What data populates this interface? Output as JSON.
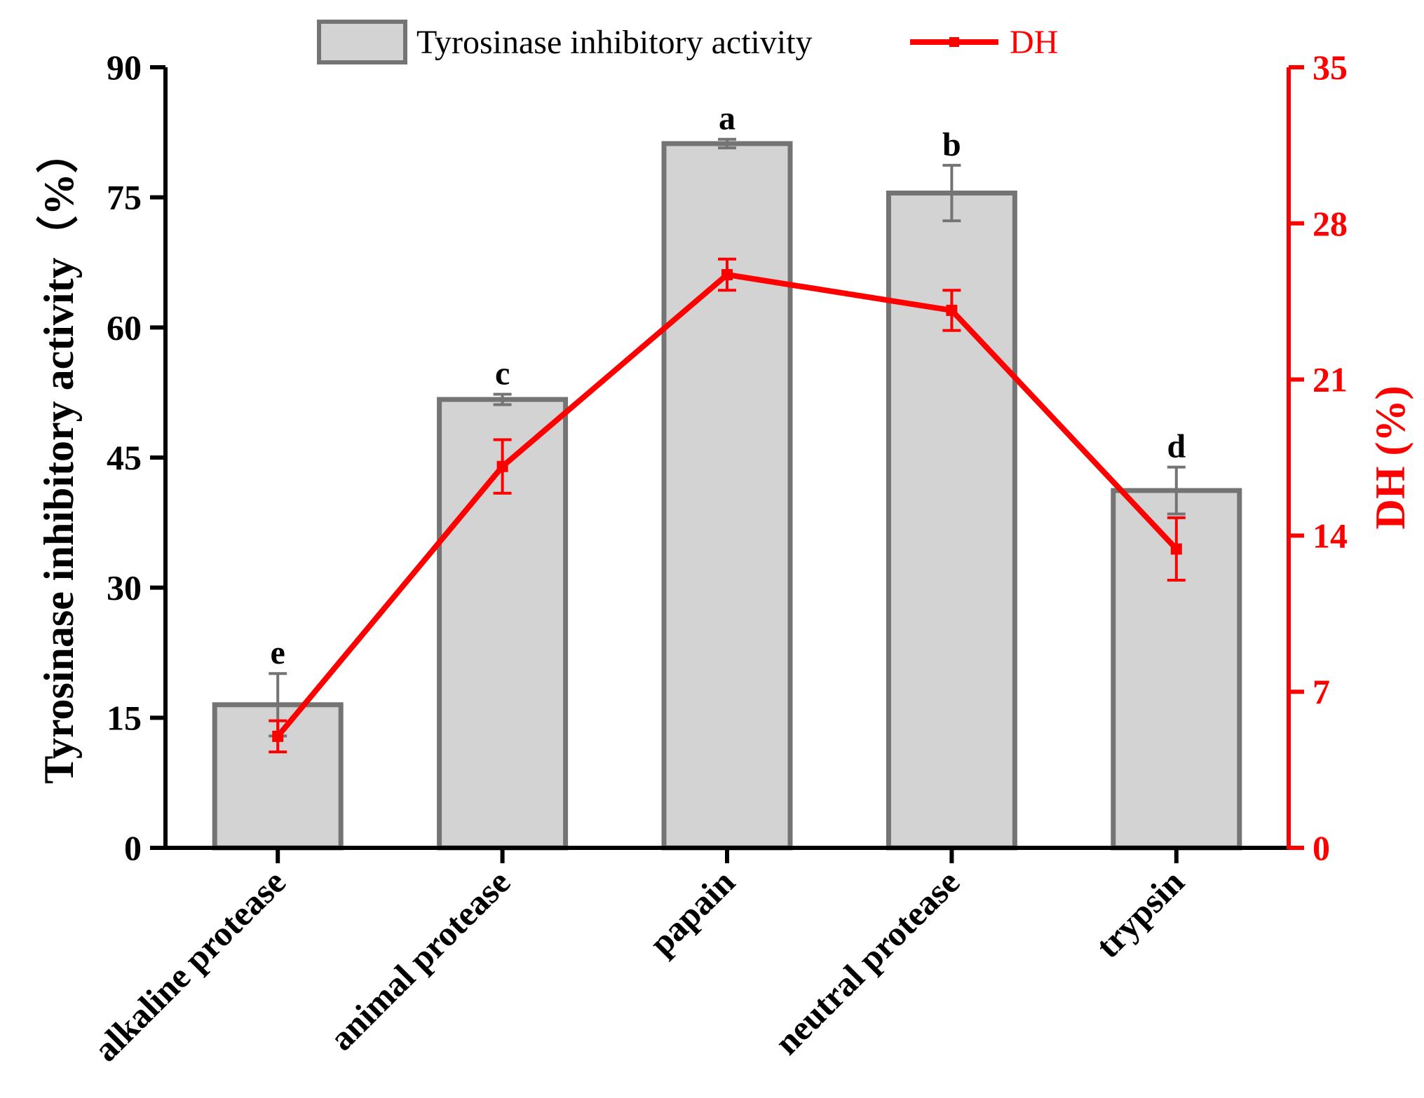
{
  "chart_data": {
    "type": "bar+line",
    "categories": [
      "alkaline protease",
      "animal protease",
      "papain",
      "neutral protease",
      "trypsin"
    ],
    "series": [
      {
        "name": "Tyrosinase inhibitory activity",
        "type": "bar",
        "axis": "left",
        "values": [
          16.5,
          51.7,
          81.2,
          75.5,
          41.2
        ],
        "errors": [
          3.6,
          0.6,
          0.5,
          3.2,
          2.7
        ],
        "significance": [
          "e",
          "c",
          "a",
          "b",
          "d"
        ]
      },
      {
        "name": "DH",
        "type": "line",
        "axis": "right",
        "values": [
          5.0,
          17.1,
          25.7,
          24.1,
          13.4
        ],
        "errors": [
          0.7,
          1.2,
          0.7,
          0.9,
          1.4
        ]
      }
    ],
    "ylabel_left": "Tyrosinase inhibitory activity（%）",
    "ylabel_right": "DH (%)",
    "ylim_left": [
      0,
      90
    ],
    "yticks_left": [
      "0",
      "15",
      "30",
      "45",
      "60",
      "75",
      "90"
    ],
    "ylim_right": [
      0,
      35
    ],
    "yticks_right": [
      "0",
      "7",
      "14",
      "21",
      "28",
      "35"
    ],
    "legend": {
      "position": "top",
      "bar_label": "Tyrosinase inhibitory activity",
      "line_label": "DH"
    },
    "colors": {
      "bar_fill": "#d3d3d3",
      "bar_edge": "#747474",
      "line": "#ff0000",
      "axis_left": "#000000",
      "axis_right": "#ff0000"
    }
  }
}
